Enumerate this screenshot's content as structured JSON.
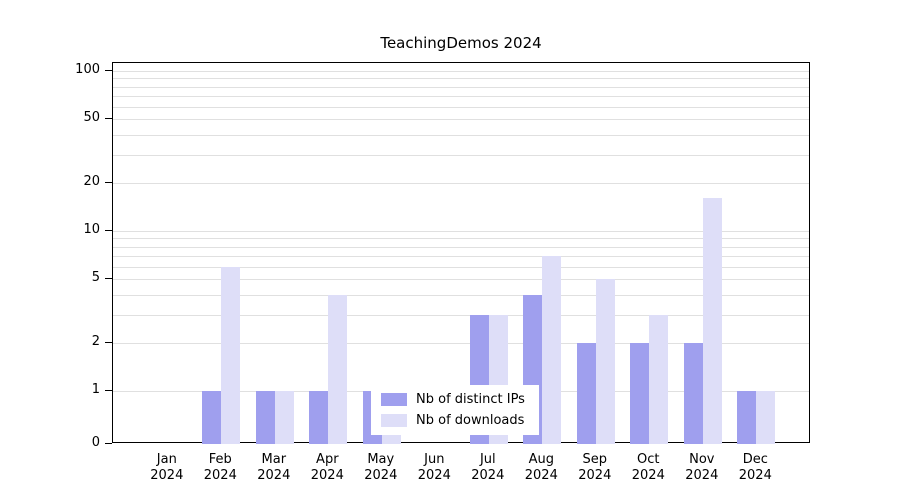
{
  "chart_data": {
    "type": "bar",
    "title": "TeachingDemos 2024",
    "categories": [
      "Jan",
      "Feb",
      "Mar",
      "Apr",
      "May",
      "Jun",
      "Jul",
      "Aug",
      "Sep",
      "Oct",
      "Nov",
      "Dec"
    ],
    "category_year": "2024",
    "series": [
      {
        "name": "Nb of distinct IPs",
        "color": "#9f9fee",
        "values": [
          0,
          1,
          1,
          1,
          1,
          0,
          3,
          4,
          2,
          2,
          2,
          1
        ]
      },
      {
        "name": "Nb of downloads",
        "color": "#dedef8",
        "values": [
          0,
          6,
          1,
          4,
          1,
          0,
          3,
          7,
          5,
          3,
          16,
          1
        ]
      }
    ],
    "yscale": "log-above-1-with-zero-baseline",
    "yticks": [
      0,
      1,
      2,
      5,
      10,
      20,
      50,
      100
    ],
    "ylim": [
      0,
      100
    ],
    "grid": "horizontal minor log gridlines (1-9, 10-90, 100)",
    "legend_position": "inside-bottom-center",
    "gridline_color": "#e0e0e0"
  }
}
